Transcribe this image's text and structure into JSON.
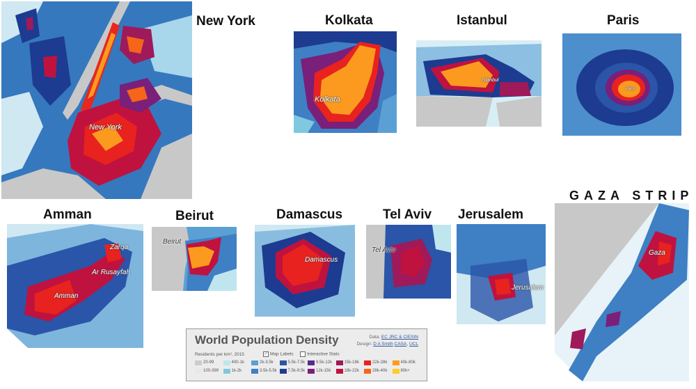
{
  "cities": {
    "new_york": {
      "title": "New York",
      "label": "New York"
    },
    "kolkata": {
      "title": "Kolkata",
      "label": "Kolkata"
    },
    "istanbul": {
      "title": "Istanbul",
      "label": "Istanbul"
    },
    "paris": {
      "title": "Paris",
      "label": "Paris"
    },
    "amman": {
      "title": "Amman",
      "label": "Amman",
      "label2": "Zarqa",
      "label3": "Ar Rusayfah"
    },
    "beirut": {
      "title": "Beirut",
      "label": "Beirut"
    },
    "damascus": {
      "title": "Damascus",
      "label": "Damascus"
    },
    "tel_aviv": {
      "title": "Tel Aviv",
      "label": "Tel Aviv"
    },
    "jerusalem": {
      "title": "Jerusalem",
      "label": "Jerusalem"
    },
    "gaza": {
      "title": "GAZA STRIP",
      "label": "Gaza"
    }
  },
  "legend": {
    "title": "World Population Density",
    "data_label": "Data:",
    "data_source": "EC JRC & CIESIN",
    "design_label": "Design:",
    "design_author": "D A Smith",
    "design_org1": "CASA",
    "design_org2": "UCL",
    "subtitle": "Residents per km², 2015",
    "map_labels": "Map Labels",
    "map_labels_checked": true,
    "interactive_stats": "Interactive Stats",
    "interactive_stats_checked": false,
    "classes": [
      {
        "label": "20-99",
        "color": "#cccccc"
      },
      {
        "label": "100-399",
        "color": "#e8e8e8"
      },
      {
        "label": "400-1k",
        "color": "#bfe6ee"
      },
      {
        "label": "1k-2k",
        "color": "#7fc8e0"
      },
      {
        "label": "2k-3.5k",
        "color": "#5aa0d4"
      },
      {
        "label": "3.5k-5.5k",
        "color": "#3f7fc4"
      },
      {
        "label": "5.5k-7.5k",
        "color": "#2a55a8"
      },
      {
        "label": "7.5k-9.5k",
        "color": "#1d3b90"
      },
      {
        "label": "9.5k-12k",
        "color": "#5a2a8c"
      },
      {
        "label": "12k-15k",
        "color": "#7a1f7a"
      },
      {
        "label": "15k-18k",
        "color": "#9e1a5a"
      },
      {
        "label": "18k-22k",
        "color": "#c0123f"
      },
      {
        "label": "22k-28k",
        "color": "#e8221e"
      },
      {
        "label": "28k-40k",
        "color": "#f5651a"
      },
      {
        "label": "40k-80k",
        "color": "#fb9a1e"
      },
      {
        "label": "80k+",
        "color": "#ffcc22"
      }
    ]
  }
}
